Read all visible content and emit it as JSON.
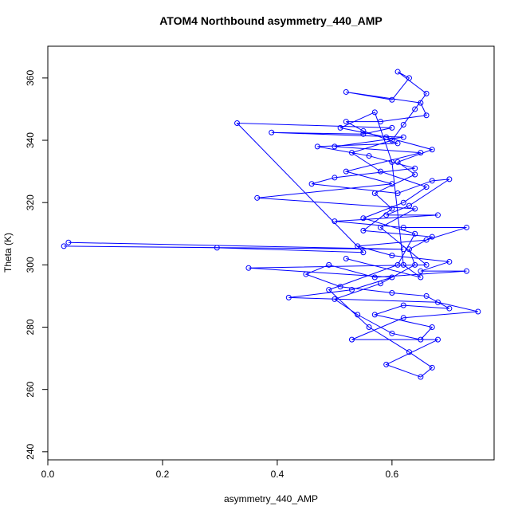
{
  "chart_data": {
    "type": "line",
    "markers": "open-circle",
    "title": "ATOM4 Northbound asymmetry_440_AMP",
    "x_label": "asymmetry_440_AMP",
    "y_label": "Theta (K)",
    "xlim": [
      0,
      0.778
    ],
    "ylim": [
      237.4,
      370.2
    ],
    "xticks": [
      {
        "value": 0,
        "label": "0.0"
      },
      0.2,
      0.4,
      0.6
    ],
    "yticks": [
      240,
      260,
      280,
      300,
      320,
      340,
      360
    ],
    "x": [
      0.036,
      0.62,
      0.028,
      0.295,
      0.55,
      0.33,
      0.6,
      0.55,
      0.39,
      0.62,
      0.5,
      0.65,
      0.52,
      0.6,
      0.365,
      0.64,
      0.58,
      0.66,
      0.35,
      0.6,
      0.53,
      0.42,
      0.68,
      0.75,
      0.62,
      0.53,
      0.68,
      0.59,
      0.65,
      0.67,
      0.63,
      0.56,
      0.49,
      0.61,
      0.64,
      0.55,
      0.62,
      0.66,
      0.58,
      0.53,
      0.6,
      0.62,
      0.64,
      0.66,
      0.61,
      0.63,
      0.6,
      0.52,
      0.65,
      0.66,
      0.58,
      0.52,
      0.55,
      0.61,
      0.47,
      0.56,
      0.64,
      0.5,
      0.46,
      0.61,
      0.67,
      0.7,
      0.63,
      0.59,
      0.68,
      0.5,
      0.62,
      0.73,
      0.66,
      0.54,
      0.6,
      0.7,
      0.65,
      0.73,
      0.57,
      0.49,
      0.45,
      0.51,
      0.6,
      0.66,
      0.7,
      0.62,
      0.57,
      0.67,
      0.65,
      0.6,
      0.54,
      0.5,
      0.58,
      0.64,
      0.63,
      0.67,
      0.55,
      0.6,
      0.57,
      0.64,
      0.61,
      0.67,
      0.59,
      0.51,
      0.57,
      0.6,
      0.62,
      0.65,
      0.52
    ],
    "series": [
      {
        "color": "#0000ff",
        "values": [
          307.2,
          305,
          306,
          305.5,
          304,
          345.5,
          344,
          342,
          342.5,
          341,
          338,
          336,
          330,
          326,
          321.5,
          318,
          312,
          300,
          299,
          296,
          292,
          289.5,
          288,
          285,
          283,
          276,
          276,
          268,
          264,
          267,
          272,
          280,
          292,
          300,
          310,
          315,
          320,
          325,
          330,
          336,
          340,
          345,
          350,
          355,
          362,
          360,
          353,
          355.5,
          352,
          348,
          346,
          346,
          343,
          339,
          338,
          335,
          331,
          328,
          326,
          323,
          327,
          327.5,
          319,
          316,
          316,
          314,
          312,
          312,
          308,
          306,
          303,
          301,
          298,
          298,
          296,
          300,
          297,
          293,
          291,
          290,
          286,
          287,
          284,
          280,
          276,
          278,
          284,
          289,
          294,
          300,
          305,
          309,
          311,
          318,
          323,
          329,
          333,
          337,
          341,
          344,
          349,
          333,
          300,
          296,
          302
        ]
      }
    ]
  }
}
